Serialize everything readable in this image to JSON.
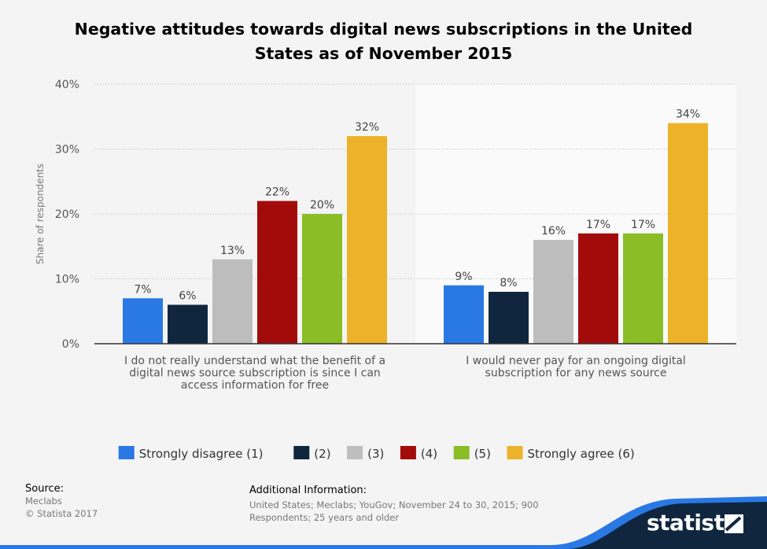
{
  "chart_data": {
    "type": "bar",
    "title": "Negative attitudes towards digital news subscriptions in the United States as of November 2015",
    "ylabel": "Share of respondents",
    "xlabel": "",
    "ylim": [
      0,
      40
    ],
    "yticks": [
      "0%",
      "10%",
      "20%",
      "30%",
      "40%"
    ],
    "grid": true,
    "legend_position": "bottom",
    "categories": [
      "I do not really understand what the benefit of a digital news source subscription is since I can access information for free",
      "I would never pay for an ongoing digital subscription for any news source"
    ],
    "category_lines": [
      [
        "I do not really understand what the benefit of a",
        "digital news source subscription is since I can",
        "access information for free"
      ],
      [
        "I would never pay for an ongoing digital",
        "subscription for any news source"
      ]
    ],
    "series": [
      {
        "name": "Strongly disagree (1)",
        "color": "#2a78e4",
        "values": [
          7,
          9
        ],
        "labels": [
          "7%",
          "9%"
        ]
      },
      {
        "name": "(2)",
        "color": "#0f263e",
        "values": [
          6,
          8
        ],
        "labels": [
          "6%",
          "8%"
        ]
      },
      {
        "name": "(3)",
        "color": "#bdbdbd",
        "values": [
          13,
          16
        ],
        "labels": [
          "13%",
          "16%"
        ]
      },
      {
        "name": "(4)",
        "color": "#a30b0b",
        "values": [
          22,
          17
        ],
        "labels": [
          "22%",
          "17%"
        ]
      },
      {
        "name": "(5)",
        "color": "#8bbd26",
        "values": [
          20,
          17
        ],
        "labels": [
          "20%",
          "17%"
        ]
      },
      {
        "name": "Strongly agree (6)",
        "color": "#ecb32a",
        "values": [
          32,
          34
        ],
        "labels": [
          "32%",
          "34%"
        ]
      }
    ]
  },
  "footer": {
    "source_label": "Source:",
    "source_lines": [
      "Meclabs",
      "© Statista 2017"
    ],
    "additional_label": "Additional Information:",
    "additional_text": "United States; Meclabs; YouGov; November 24 to 30, 2015; 900 Respondents; 25 years and older",
    "logo_text": "statista",
    "footer_color": "#0f263e",
    "accent_color": "#2a78e4"
  }
}
